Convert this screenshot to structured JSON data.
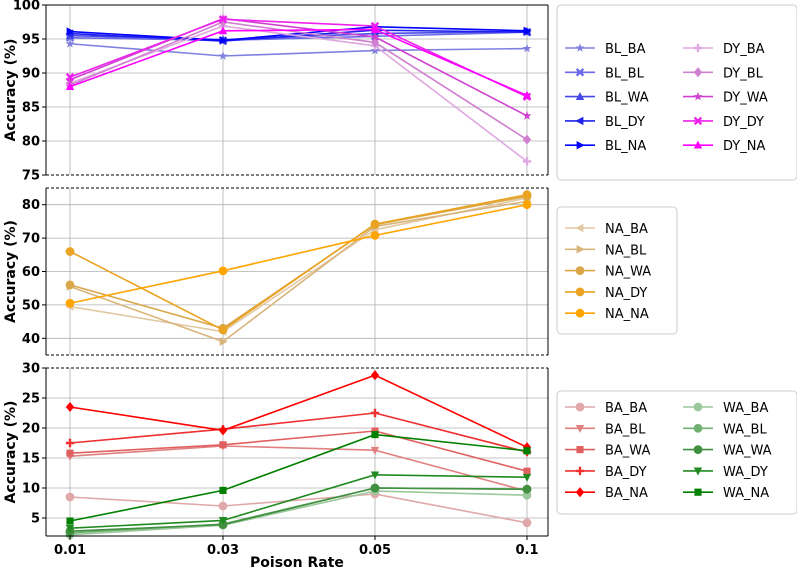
{
  "chart_data": [
    {
      "type": "line",
      "xlabel": "",
      "ylabel": "Accuracy (%)",
      "x": [
        "0.01",
        "0.03",
        "0.05",
        "0.1"
      ],
      "ylim": [
        75,
        100
      ],
      "yticks": [
        75,
        80,
        85,
        90,
        95,
        100
      ],
      "yticklabels": [
        "75",
        "80",
        "85",
        "90",
        "95",
        "100"
      ],
      "grid": true,
      "legend_position": "right",
      "legend_columns": 2,
      "series": [
        {
          "name": "BL_BA",
          "values": [
            94.3,
            92.5,
            93.3,
            93.6
          ],
          "color": "#8080e0",
          "marker": "star"
        },
        {
          "name": "BL_BL",
          "values": [
            95.2,
            94.8,
            95.4,
            96.0
          ],
          "color": "#6a6ae8",
          "marker": "x"
        },
        {
          "name": "BL_WA",
          "values": [
            95.5,
            94.9,
            95.8,
            96.1
          ],
          "color": "#4848e8",
          "marker": "triangle-up"
        },
        {
          "name": "BL_DY",
          "values": [
            95.8,
            94.7,
            96.3,
            96.0
          ],
          "color": "#2020ee",
          "marker": "triangle-left"
        },
        {
          "name": "BL_NA",
          "values": [
            96.1,
            94.8,
            96.8,
            96.2
          ],
          "color": "#0000ff",
          "marker": "triangle-right"
        },
        {
          "name": "DY_BA",
          "values": [
            88.5,
            96.9,
            94.0,
            77.0
          ],
          "color": "#e0a8e0",
          "marker": "plus"
        },
        {
          "name": "DY_BL",
          "values": [
            88.2,
            97.5,
            94.5,
            80.2
          ],
          "color": "#d080d0",
          "marker": "diamond"
        },
        {
          "name": "DY_WA",
          "values": [
            89.0,
            98.0,
            95.3,
            83.7
          ],
          "color": "#d040d0",
          "marker": "star"
        },
        {
          "name": "DY_DY",
          "values": [
            89.4,
            97.9,
            96.9,
            86.5
          ],
          "color": "#ee22ee",
          "marker": "x"
        },
        {
          "name": "DY_NA",
          "values": [
            88.0,
            96.2,
            96.4,
            86.7
          ],
          "color": "#ff00ff",
          "marker": "triangle-up"
        }
      ]
    },
    {
      "type": "line",
      "xlabel": "",
      "ylabel": "Accuracy (%)",
      "x": [
        "0.01",
        "0.03",
        "0.05",
        "0.1"
      ],
      "ylim": [
        35,
        85
      ],
      "yticks": [
        40,
        50,
        60,
        70,
        80
      ],
      "yticklabels": [
        "40",
        "50",
        "60",
        "70",
        "80"
      ],
      "grid": true,
      "legend_position": "right",
      "legend_columns": 1,
      "series": [
        {
          "name": "NA_BA",
          "values": [
            49.5,
            42.0,
            72.5,
            82.0
          ],
          "color": "#e2c8a4",
          "marker": "triangle-left"
        },
        {
          "name": "NA_BL",
          "values": [
            55.5,
            39.0,
            73.5,
            81.0
          ],
          "color": "#d9b47a",
          "marker": "triangle-right"
        },
        {
          "name": "NA_WA",
          "values": [
            56.0,
            43.0,
            74.0,
            82.5
          ],
          "color": "#d9a748",
          "marker": "circle"
        },
        {
          "name": "NA_DY",
          "values": [
            66.0,
            42.5,
            74.2,
            83.0
          ],
          "color": "#eaa322",
          "marker": "circle"
        },
        {
          "name": "NA_NA",
          "values": [
            50.5,
            60.2,
            70.8,
            80.0
          ],
          "color": "#ffa500",
          "marker": "circle"
        }
      ]
    },
    {
      "type": "line",
      "xlabel": "Poison Rate",
      "ylabel": "Accuracy (%)",
      "x": [
        "0.01",
        "0.03",
        "0.05",
        "0.1"
      ],
      "ylim": [
        2,
        30
      ],
      "yticks": [
        5,
        10,
        15,
        20,
        25,
        30
      ],
      "yticklabels": [
        "5",
        "10",
        "15",
        "20",
        "25",
        "30"
      ],
      "grid": true,
      "legend_position": "right",
      "legend_columns": 2,
      "series": [
        {
          "name": "BA_BA",
          "values": [
            8.5,
            7.0,
            9.0,
            4.2
          ],
          "color": "#e0a8a8",
          "marker": "circle"
        },
        {
          "name": "BA_BL",
          "values": [
            15.3,
            17.0,
            16.3,
            9.5
          ],
          "color": "#e08080",
          "marker": "triangle-down"
        },
        {
          "name": "BA_WA",
          "values": [
            15.8,
            17.2,
            19.5,
            12.8
          ],
          "color": "#e06060",
          "marker": "square"
        },
        {
          "name": "BA_DY",
          "values": [
            17.5,
            19.8,
            22.5,
            16.0
          ],
          "color": "#ee3030",
          "marker": "plus"
        },
        {
          "name": "BA_NA",
          "values": [
            23.5,
            19.6,
            28.8,
            16.8
          ],
          "color": "#ff0000",
          "marker": "diamond"
        },
        {
          "name": "WA_BA",
          "values": [
            2.2,
            3.8,
            9.5,
            8.8
          ],
          "color": "#9cc89c",
          "marker": "circle"
        },
        {
          "name": "WA_BL",
          "values": [
            2.5,
            4.0,
            10.0,
            9.8
          ],
          "color": "#70b070",
          "marker": "circle"
        },
        {
          "name": "WA_WA",
          "values": [
            2.8,
            3.9,
            10.0,
            9.8
          ],
          "color": "#409040",
          "marker": "circle"
        },
        {
          "name": "WA_DY",
          "values": [
            3.3,
            4.6,
            12.2,
            11.8
          ],
          "color": "#208a20",
          "marker": "triangle-down"
        },
        {
          "name": "WA_NA",
          "values": [
            4.5,
            9.6,
            18.9,
            16.2
          ],
          "color": "#008000",
          "marker": "square"
        }
      ]
    }
  ]
}
